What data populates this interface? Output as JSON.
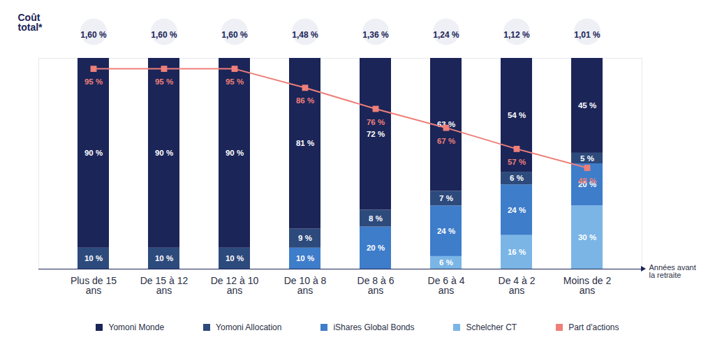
{
  "chart_data": {
    "type": "bar",
    "stacked": true,
    "data_labels": true,
    "grid": false,
    "legend": "bottom",
    "tick_labels": "x",
    "xlabel": "Années avant la retraite",
    "categories": [
      "Plus de 15 ans",
      "De 15 à 12 ans",
      "De 12 à 10 ans",
      "De 10 à 8 ans",
      "De 8 à 6 ans",
      "De 6 à 4 ans",
      "De 4 à 2 ans",
      "Moins de 2 ans"
    ],
    "ylim": [
      0,
      100
    ],
    "yticks": [],
    "series": [
      {
        "name": "Yomoni Monde",
        "type": "bar",
        "color": "#1b2558",
        "values": [
          90,
          90,
          90,
          81,
          72,
          63,
          54,
          45
        ],
        "value_labels": [
          "90 %",
          "90 %",
          "90 %",
          "81 %",
          "72 %",
          "63 %",
          "54 %",
          "45 %"
        ]
      },
      {
        "name": "Yomoni Allocation",
        "type": "bar",
        "color": "#2d4a7c",
        "values": [
          10,
          10,
          10,
          9,
          8,
          7,
          6,
          5
        ],
        "value_labels": [
          "10 %",
          "10 %",
          "10 %",
          "9 %",
          "8 %",
          "7 %",
          "6 %",
          "5 %"
        ]
      },
      {
        "name": "iShares Global Bonds",
        "type": "bar",
        "color": "#3e7dca",
        "values": [
          0,
          0,
          0,
          10,
          20,
          24,
          24,
          20
        ],
        "value_labels": [
          null,
          null,
          null,
          "10 %",
          "20 %",
          "24 %",
          "24 %",
          "20 %"
        ]
      },
      {
        "name": "Schelcher CT",
        "type": "bar",
        "color": "#7ab5e6",
        "values": [
          0,
          0,
          0,
          0,
          0,
          6,
          16,
          30
        ],
        "value_labels": [
          null,
          null,
          null,
          null,
          null,
          "6 %",
          "16 %",
          "30 %"
        ]
      },
      {
        "name": "Part d'actions",
        "type": "line",
        "color": "#ee7f79",
        "marker": "square",
        "line_style": "solid",
        "values": [
          95,
          95,
          95,
          86,
          76,
          67,
          57,
          48
        ],
        "value_labels": [
          "95 %",
          "95 %",
          "95 %",
          "86 %",
          "76 %",
          "67 %",
          "57 %",
          "48 %"
        ]
      }
    ],
    "total_cost": {
      "title": "Coût total*",
      "values": [
        1.6,
        1.6,
        1.6,
        1.48,
        1.36,
        1.24,
        1.12,
        1.01
      ],
      "value_labels": [
        "1,60 %",
        "1,60 %",
        "1,60 %",
        "1,48 %",
        "1,36 %",
        "1,24 %",
        "1,12 %",
        "1,01 %"
      ]
    }
  }
}
